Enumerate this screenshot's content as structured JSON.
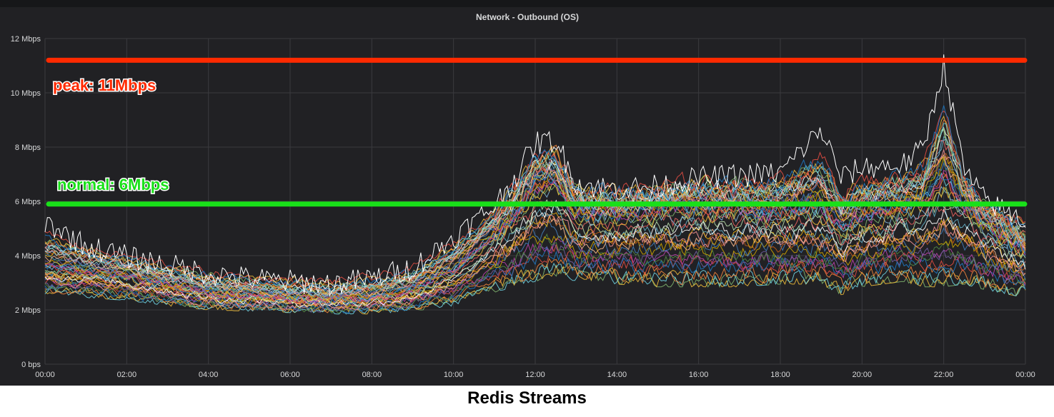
{
  "panel": {
    "caption": "Redis Streams"
  },
  "chart_data": {
    "type": "line",
    "title": "Network - Outbound (OS)",
    "xlabel": "",
    "ylabel": "",
    "x_ticks": [
      "00:00",
      "02:00",
      "04:00",
      "06:00",
      "08:00",
      "10:00",
      "12:00",
      "14:00",
      "16:00",
      "18:00",
      "20:00",
      "22:00",
      "00:00"
    ],
    "y_ticks": [
      "0 bps",
      "2 Mbps",
      "4 Mbps",
      "6 Mbps",
      "8 Mbps",
      "10 Mbps",
      "12 Mbps"
    ],
    "xlim": [
      0,
      24
    ],
    "ylim": [
      0,
      12
    ],
    "y_unit": "Mbps",
    "grid": true,
    "legend": "none",
    "series_style": "many overlapping multicolor per-host lines",
    "envelope": {
      "x_hours": [
        0,
        1,
        2,
        3,
        4,
        5,
        6,
        7,
        8,
        9,
        10,
        11,
        11.5,
        12,
        12.5,
        13,
        14,
        15,
        16,
        17,
        18,
        19,
        19.5,
        20,
        21,
        21.5,
        22,
        22.5,
        23,
        24
      ],
      "low_mbps": [
        2.7,
        2.6,
        2.5,
        2.3,
        2.15,
        2.1,
        2.05,
        2.0,
        2.0,
        2.1,
        2.3,
        2.8,
        3.0,
        3.2,
        3.4,
        3.2,
        3.1,
        3.0,
        3.0,
        3.0,
        3.1,
        3.1,
        2.7,
        3.0,
        3.2,
        3.0,
        3.0,
        3.1,
        2.9,
        2.6
      ],
      "mid_mbps": [
        3.6,
        3.5,
        3.3,
        3.0,
        2.7,
        2.6,
        2.5,
        2.45,
        2.5,
        2.8,
        3.5,
        4.8,
        5.6,
        6.6,
        6.8,
        5.6,
        5.6,
        5.8,
        5.9,
        5.8,
        5.7,
        5.8,
        5.0,
        5.5,
        5.8,
        6.0,
        6.8,
        6.0,
        5.2,
        4.2
      ],
      "high_mbps": [
        5.6,
        4.7,
        4.3,
        4.0,
        3.7,
        3.5,
        3.4,
        3.3,
        3.5,
        3.9,
        5.0,
        6.2,
        7.2,
        8.5,
        8.6,
        7.0,
        6.8,
        6.9,
        7.2,
        7.3,
        7.4,
        9.0,
        7.2,
        7.6,
        7.7,
        8.3,
        11.4,
        7.5,
        6.4,
        5.6
      ]
    },
    "reference_lines": [
      {
        "label": "peak: 11Mbps",
        "value": 11.2,
        "color": "#ff2a00"
      },
      {
        "label": "normal: 6Mbps",
        "value": 5.9,
        "color": "#19e019"
      }
    ],
    "colors": {
      "panel_bg": "#212124",
      "grid": "#3a3a3e",
      "text": "#d8d9da",
      "palette": [
        "#7eb26d",
        "#eab839",
        "#6ed0e0",
        "#ef843c",
        "#e24d42",
        "#1f78c1",
        "#ba43a9",
        "#705da0",
        "#508642",
        "#cca300",
        "#447ebc",
        "#c15c17",
        "#f9ba8f",
        "#e5ac0e",
        "#f29191",
        "#64b0c8",
        "#ffffff",
        "#ea6460",
        "#b7dbab",
        "#82b5d8"
      ]
    }
  }
}
